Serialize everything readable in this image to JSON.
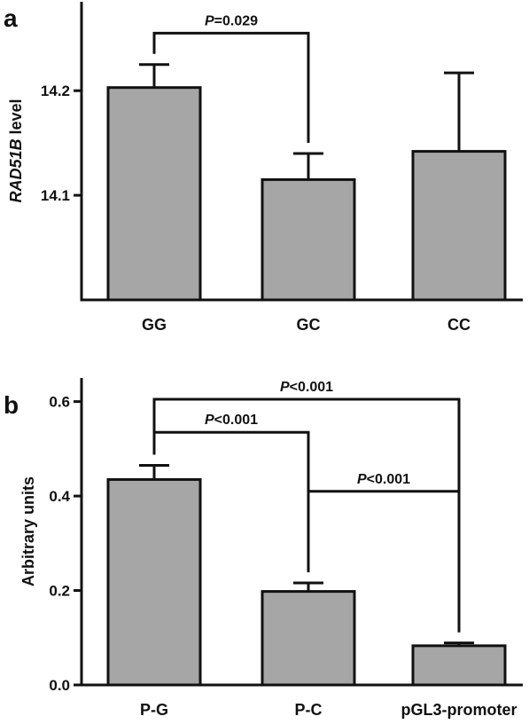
{
  "chart_data": [
    {
      "type": "bar",
      "panel_label": "a",
      "ylabel_italic": "RAD51B",
      "ylabel_rest": " level",
      "categories": [
        "GG",
        "GC",
        "CC"
      ],
      "values": [
        14.203,
        14.115,
        14.142
      ],
      "errors": [
        0.022,
        0.025,
        0.075
      ],
      "ylim": [
        14.0,
        14.285
      ],
      "yticks": [
        14.1,
        14.2
      ],
      "ytick_labels": [
        "14.1",
        "14.2"
      ],
      "comparisons": [
        {
          "from": 0,
          "to": 1,
          "label_italic": "P",
          "label_rest": "=0.029",
          "level": 14.255
        }
      ]
    },
    {
      "type": "bar",
      "panel_label": "b",
      "ylabel": "Arbitrary units",
      "categories": [
        "P-G",
        "P-C",
        "pGL3-promoter"
      ],
      "values": [
        0.435,
        0.198,
        0.083
      ],
      "errors": [
        0.03,
        0.018,
        0.006
      ],
      "ylim": [
        0.0,
        0.65
      ],
      "yticks": [
        0.0,
        0.2,
        0.4,
        0.6
      ],
      "ytick_labels": [
        "0.0",
        "0.2",
        "0.4",
        "0.6"
      ],
      "comparisons": [
        {
          "from": 0,
          "to": 2,
          "label_italic": "P",
          "label_rest": "<0.001",
          "level": 0.605
        },
        {
          "from": 0,
          "to": 1,
          "label_italic": "P",
          "label_rest": "<0.001",
          "level": 0.535
        },
        {
          "from": 1,
          "to": 2,
          "label_italic": "P",
          "label_rest": "<0.001",
          "level": 0.41
        }
      ]
    }
  ]
}
